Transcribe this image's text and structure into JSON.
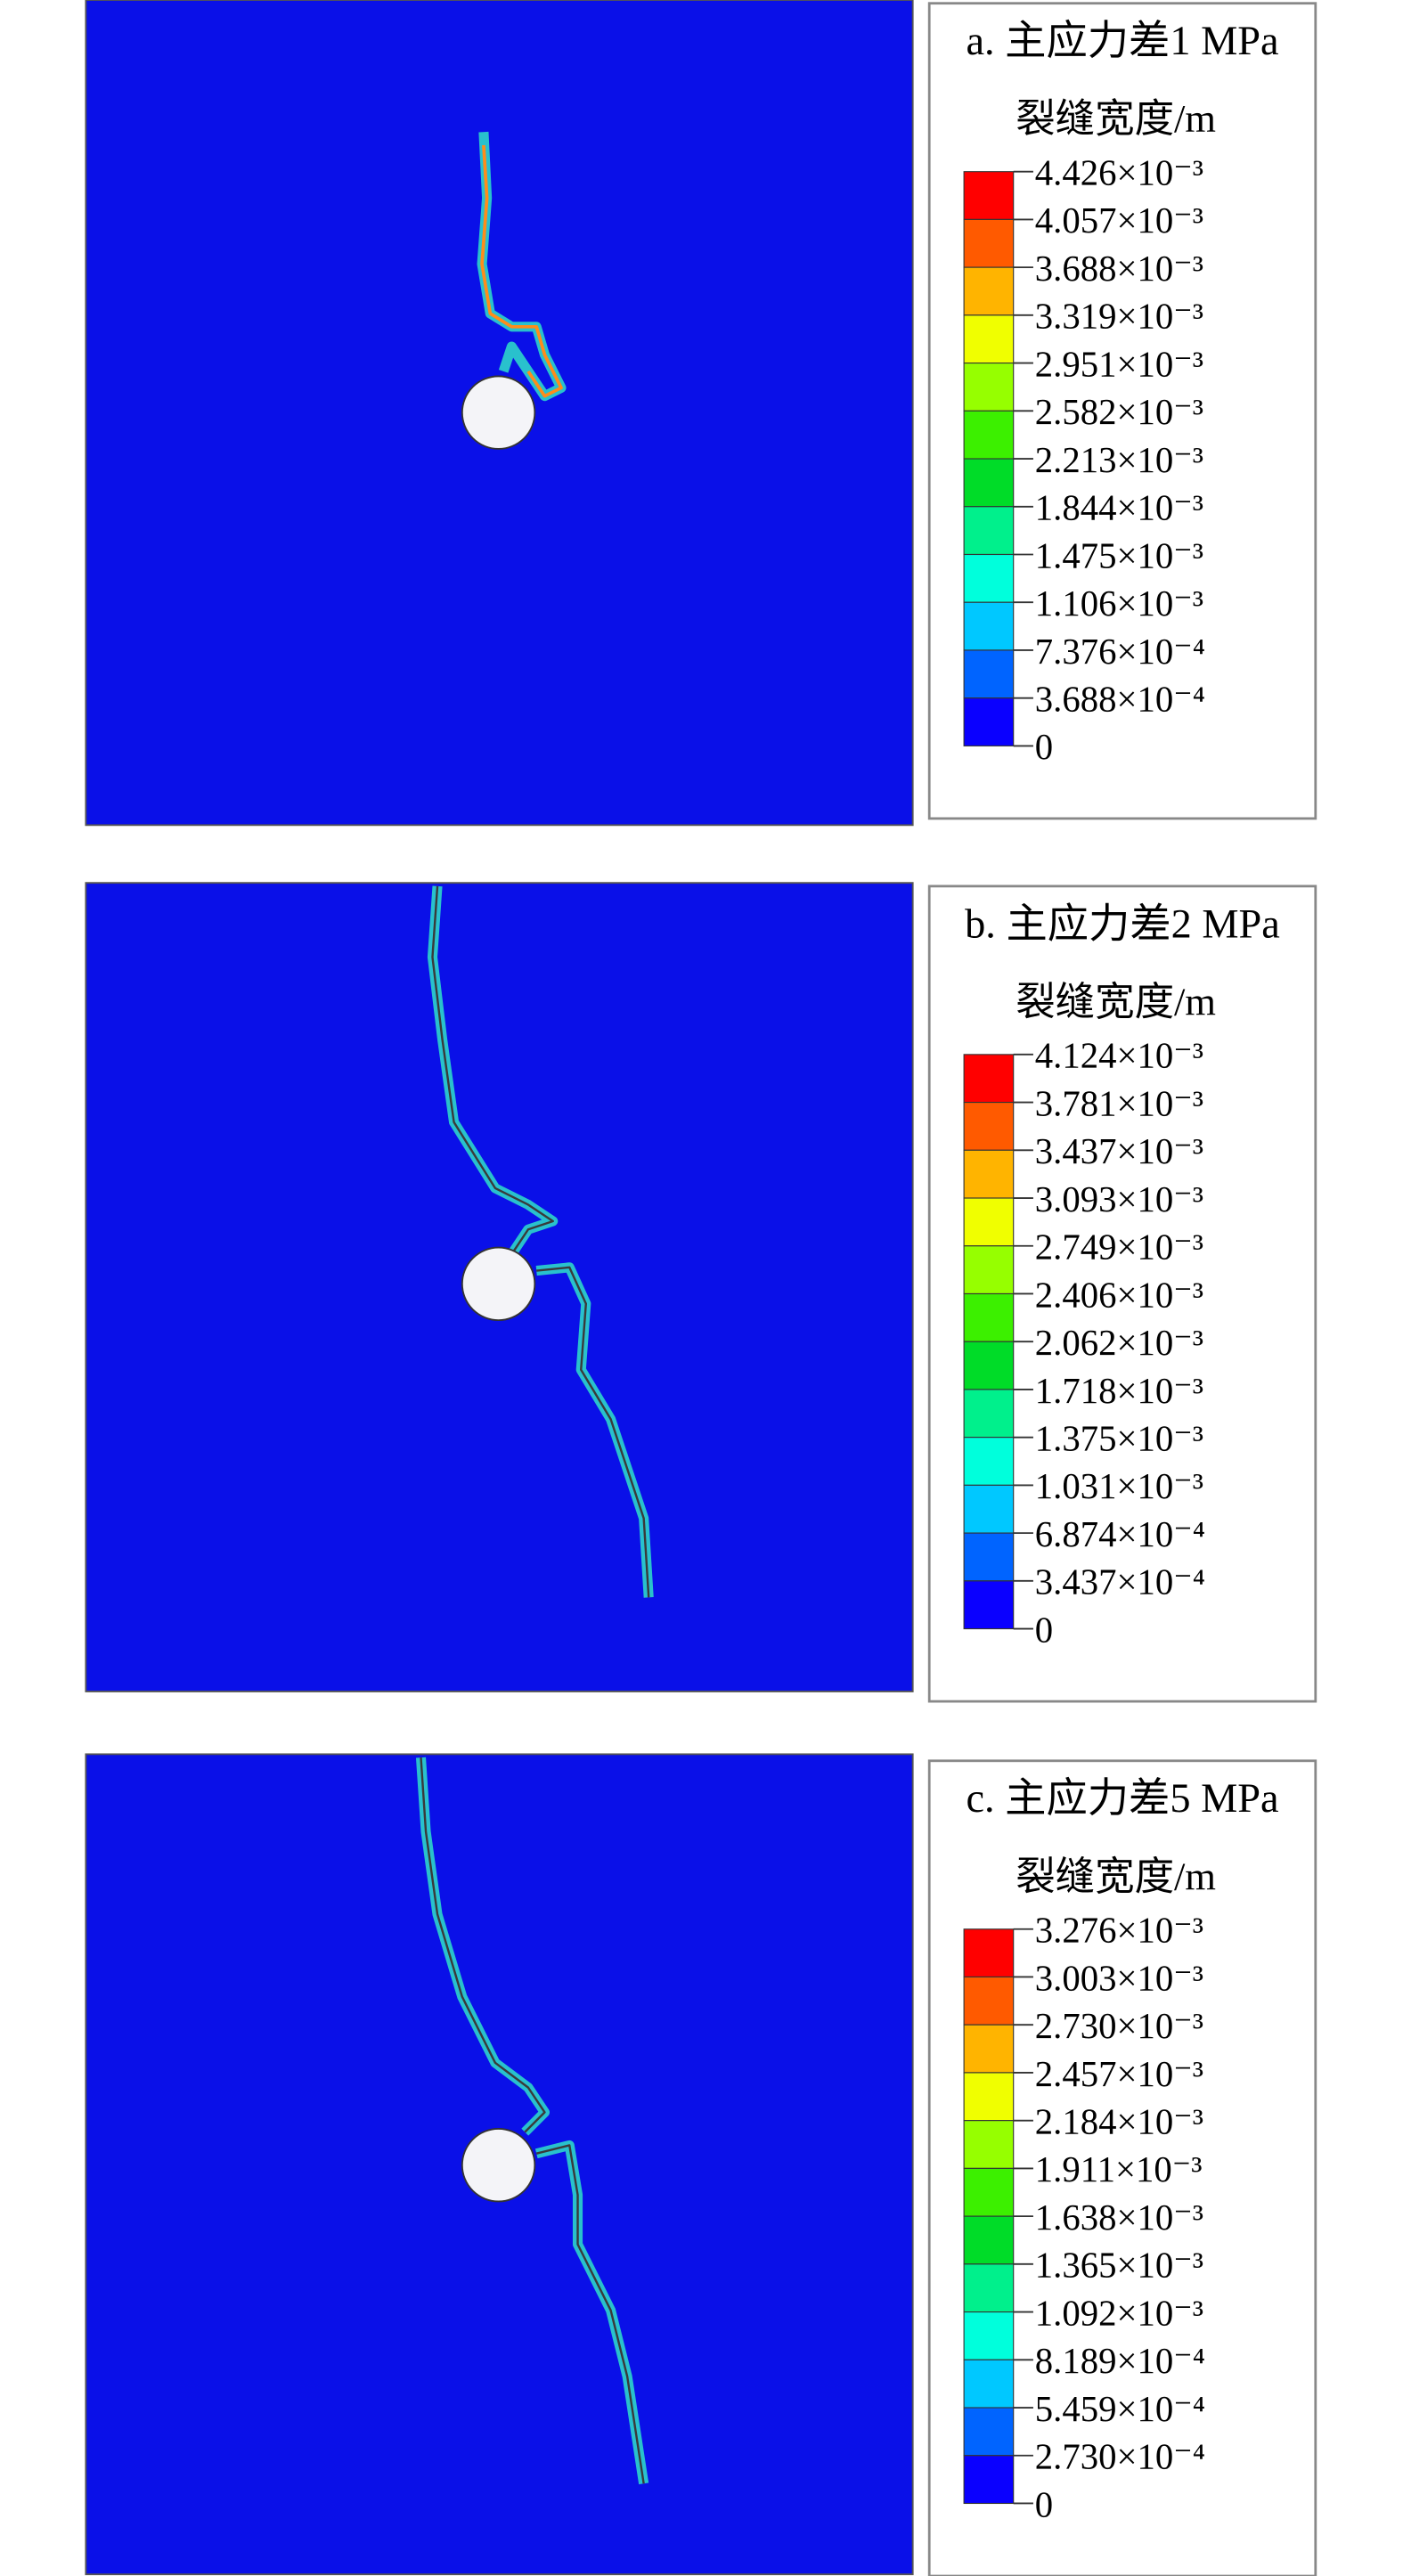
{
  "panels": [
    {
      "title": "a. 主应力差1 MPa",
      "legend_title": "裂缝宽度/m",
      "levels": [
        "4.426×10⁻³",
        "4.057×10⁻³",
        "3.688×10⁻³",
        "3.319×10⁻³",
        "2.951×10⁻³",
        "2.582×10⁻³",
        "2.213×10⁻³",
        "1.844×10⁻³",
        "1.475×10⁻³",
        "1.106×10⁻³",
        "7.376×10⁻⁴",
        "3.688×10⁻⁴",
        "0"
      ]
    },
    {
      "title": "b. 主应力差2 MPa",
      "legend_title": "裂缝宽度/m",
      "levels": [
        "4.124×10⁻³",
        "3.781×10⁻³",
        "3.437×10⁻³",
        "3.093×10⁻³",
        "2.749×10⁻³",
        "2.406×10⁻³",
        "2.062×10⁻³",
        "1.718×10⁻³",
        "1.375×10⁻³",
        "1.031×10⁻³",
        "6.874×10⁻⁴",
        "3.437×10⁻⁴",
        "0"
      ]
    },
    {
      "title": "c. 主应力差5 MPa",
      "legend_title": "裂缝宽度/m",
      "levels": [
        "3.276×10⁻³",
        "3.003×10⁻³",
        "2.730×10⁻³",
        "2.457×10⁻³",
        "2.184×10⁻³",
        "1.911×10⁻³",
        "1.638×10⁻³",
        "1.365×10⁻³",
        "1.092×10⁻³",
        "8.189×10⁻⁴",
        "5.459×10⁻⁴",
        "2.730×10⁻⁴",
        "0"
      ]
    }
  ],
  "colors": [
    "#ff0000",
    "#ff5a00",
    "#ffb400",
    "#f0ff00",
    "#96ff00",
    "#3cf000",
    "#00dc28",
    "#00f08c",
    "#00ffdc",
    "#00c8ff",
    "#0064ff",
    "#0a00ff"
  ]
}
